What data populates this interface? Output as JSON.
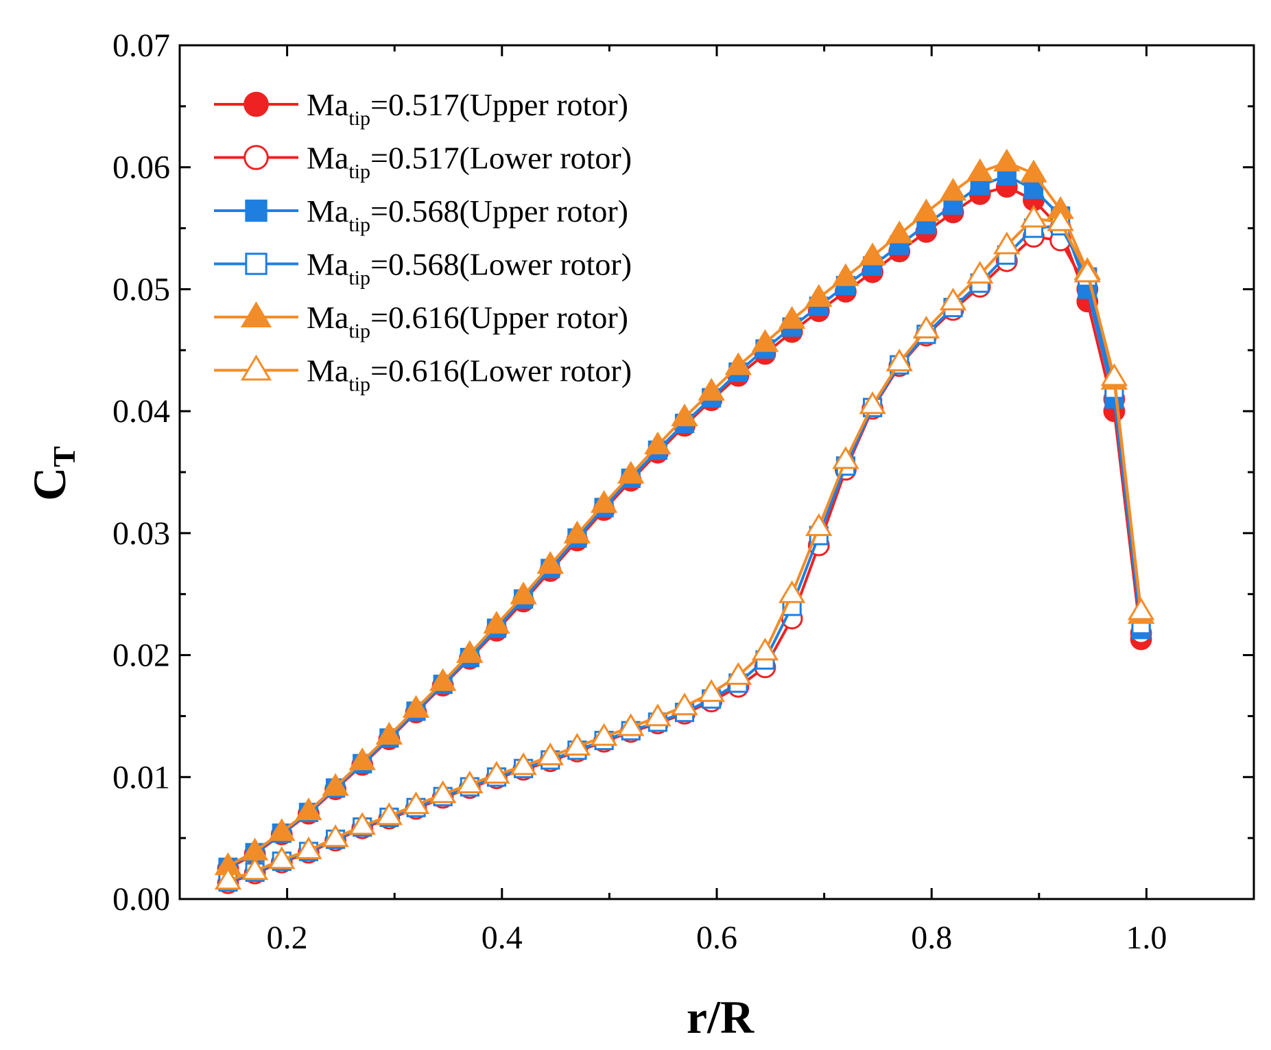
{
  "chart_data": {
    "type": "line",
    "title": "",
    "xlabel": "r/R",
    "ylabel": {
      "main": "C",
      "sub": "T"
    },
    "xlim": [
      0.1,
      1.1
    ],
    "ylim": [
      0.0,
      0.07
    ],
    "xticks": [
      {
        "value": 0.2,
        "label": "0.2"
      },
      {
        "value": 0.4,
        "label": "0.4"
      },
      {
        "value": 0.6,
        "label": "0.6"
      },
      {
        "value": 0.8,
        "label": "0.8"
      },
      {
        "value": 1.0,
        "label": "1.0"
      }
    ],
    "yticks": [
      {
        "value": 0.0,
        "label": "0.00"
      },
      {
        "value": 0.01,
        "label": "0.01"
      },
      {
        "value": 0.02,
        "label": "0.02"
      },
      {
        "value": 0.03,
        "label": "0.03"
      },
      {
        "value": 0.04,
        "label": "0.04"
      },
      {
        "value": 0.05,
        "label": "0.05"
      },
      {
        "value": 0.06,
        "label": "0.06"
      },
      {
        "value": 0.07,
        "label": "0.07"
      }
    ],
    "grid": false,
    "legend_position": "top-left",
    "x": [
      0.145,
      0.17,
      0.195,
      0.22,
      0.245,
      0.27,
      0.295,
      0.32,
      0.345,
      0.37,
      0.395,
      0.42,
      0.445,
      0.47,
      0.495,
      0.52,
      0.545,
      0.57,
      0.595,
      0.62,
      0.645,
      0.67,
      0.695,
      0.72,
      0.745,
      0.77,
      0.795,
      0.82,
      0.845,
      0.87,
      0.895,
      0.92,
      0.945,
      0.97,
      0.995
    ],
    "series": [
      {
        "name": "Upper rotor",
        "legend_prefix": "Ma",
        "legend_sub": "tip",
        "legend_suffix": "=0.517(Upper rotor)",
        "color": "#ee2222",
        "marker": "circle",
        "filled": true,
        "values": [
          0.0025,
          0.0037,
          0.0053,
          0.007,
          0.009,
          0.011,
          0.0131,
          0.0153,
          0.0175,
          0.0197,
          0.022,
          0.0244,
          0.0269,
          0.0294,
          0.0319,
          0.0343,
          0.0366,
          0.0388,
          0.0409,
          0.0429,
          0.0447,
          0.0465,
          0.0482,
          0.0498,
          0.0514,
          0.0531,
          0.0547,
          0.0563,
          0.0578,
          0.0584,
          0.0573,
          0.055,
          0.049,
          0.04,
          0.0213
        ]
      },
      {
        "name": "Lower rotor",
        "legend_prefix": "Ma",
        "legend_sub": "tip",
        "legend_suffix": "=0.517(Lower rotor)",
        "color": "#ee2222",
        "marker": "circle",
        "filled": false,
        "values": [
          0.0013,
          0.0021,
          0.003,
          0.0038,
          0.0048,
          0.0058,
          0.0066,
          0.0074,
          0.0083,
          0.0091,
          0.0099,
          0.0106,
          0.0113,
          0.0121,
          0.0129,
          0.0137,
          0.0144,
          0.0152,
          0.0162,
          0.0174,
          0.019,
          0.023,
          0.029,
          0.0352,
          0.0402,
          0.0437,
          0.0462,
          0.0483,
          0.0502,
          0.0523,
          0.0543,
          0.054,
          0.05,
          0.041,
          0.0218
        ]
      },
      {
        "name": "Upper rotor",
        "legend_prefix": "Ma",
        "legend_sub": "tip",
        "legend_suffix": "=0.568(Upper rotor)",
        "color": "#1e7fe0",
        "marker": "square",
        "filled": true,
        "values": [
          0.0026,
          0.0038,
          0.0054,
          0.0071,
          0.0091,
          0.0111,
          0.0132,
          0.0154,
          0.0176,
          0.0198,
          0.0222,
          0.0246,
          0.0271,
          0.0296,
          0.0321,
          0.0345,
          0.0368,
          0.039,
          0.0411,
          0.0432,
          0.0451,
          0.0469,
          0.0486,
          0.0503,
          0.0519,
          0.0536,
          0.0553,
          0.0569,
          0.0585,
          0.0593,
          0.0582,
          0.056,
          0.05,
          0.041,
          0.0221
        ]
      },
      {
        "name": "Lower rotor",
        "legend_prefix": "Ma",
        "legend_sub": "tip",
        "legend_suffix": "=0.568(Lower rotor)",
        "color": "#1e7fe0",
        "marker": "square",
        "filled": false,
        "values": [
          0.0014,
          0.0022,
          0.0031,
          0.0039,
          0.0049,
          0.0059,
          0.0067,
          0.0075,
          0.0084,
          0.0092,
          0.01,
          0.0107,
          0.0114,
          0.0122,
          0.013,
          0.0138,
          0.0145,
          0.0153,
          0.0164,
          0.0177,
          0.0196,
          0.024,
          0.0298,
          0.0355,
          0.0403,
          0.0438,
          0.0463,
          0.0485,
          0.0505,
          0.0528,
          0.055,
          0.0552,
          0.051,
          0.0418,
          0.0225
        ]
      },
      {
        "name": "Upper rotor",
        "legend_prefix": "Ma",
        "legend_sub": "tip",
        "legend_suffix": "=0.616(Upper rotor)",
        "color": "#f28c28",
        "marker": "triangle",
        "filled": true,
        "values": [
          0.0027,
          0.0039,
          0.0055,
          0.0072,
          0.0092,
          0.0113,
          0.0134,
          0.0156,
          0.0178,
          0.0201,
          0.0225,
          0.0249,
          0.0274,
          0.0299,
          0.0324,
          0.0348,
          0.0372,
          0.0395,
          0.0416,
          0.0437,
          0.0456,
          0.0475,
          0.0493,
          0.051,
          0.0527,
          0.0545,
          0.0563,
          0.058,
          0.0596,
          0.0604,
          0.0595,
          0.0565,
          0.0515,
          0.0425,
          0.0233
        ]
      },
      {
        "name": "Lower rotor",
        "legend_prefix": "Ma",
        "legend_sub": "tip",
        "legend_suffix": "=0.616(Lower rotor)",
        "color": "#f28c28",
        "marker": "triangle",
        "filled": false,
        "values": [
          0.0015,
          0.0023,
          0.0032,
          0.004,
          0.005,
          0.006,
          0.0068,
          0.0077,
          0.0086,
          0.0094,
          0.0102,
          0.0109,
          0.0117,
          0.0125,
          0.0133,
          0.0141,
          0.0149,
          0.0158,
          0.0169,
          0.0183,
          0.0203,
          0.025,
          0.0305,
          0.036,
          0.0405,
          0.044,
          0.0467,
          0.049,
          0.0512,
          0.0536,
          0.0558,
          0.0555,
          0.0513,
          0.0428,
          0.0236
        ]
      }
    ]
  }
}
